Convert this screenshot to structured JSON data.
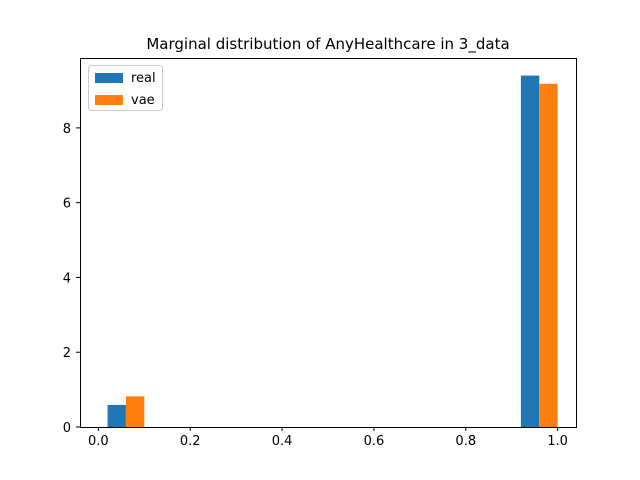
{
  "chart_data": {
    "type": "bar",
    "title": "Marginal distribution of AnyHealthcare in 3_data",
    "xlabel": "",
    "ylabel": "",
    "xlim": [
      -0.04,
      1.04
    ],
    "ylim": [
      0,
      9.87
    ],
    "x_ticks": [
      "0.0",
      "0.2",
      "0.4",
      "0.6",
      "0.8",
      "1.0"
    ],
    "y_ticks": [
      "0",
      "2",
      "4",
      "6",
      "8"
    ],
    "x_tick_values": [
      0.0,
      0.2,
      0.4,
      0.6,
      0.8,
      1.0
    ],
    "y_tick_values": [
      0,
      2,
      4,
      6,
      8
    ],
    "grid": false,
    "legend_position": "upper left",
    "series": [
      {
        "name": "real",
        "color": "#1f77b4",
        "bars": [
          {
            "x_start": 0.02,
            "x_end": 0.06,
            "value": 0.59
          },
          {
            "x_start": 0.92,
            "x_end": 0.96,
            "value": 9.4
          }
        ]
      },
      {
        "name": "vae",
        "color": "#ff7f0e",
        "bars": [
          {
            "x_start": 0.06,
            "x_end": 0.1,
            "value": 0.82
          },
          {
            "x_start": 0.96,
            "x_end": 1.0,
            "value": 9.18
          }
        ]
      }
    ]
  }
}
